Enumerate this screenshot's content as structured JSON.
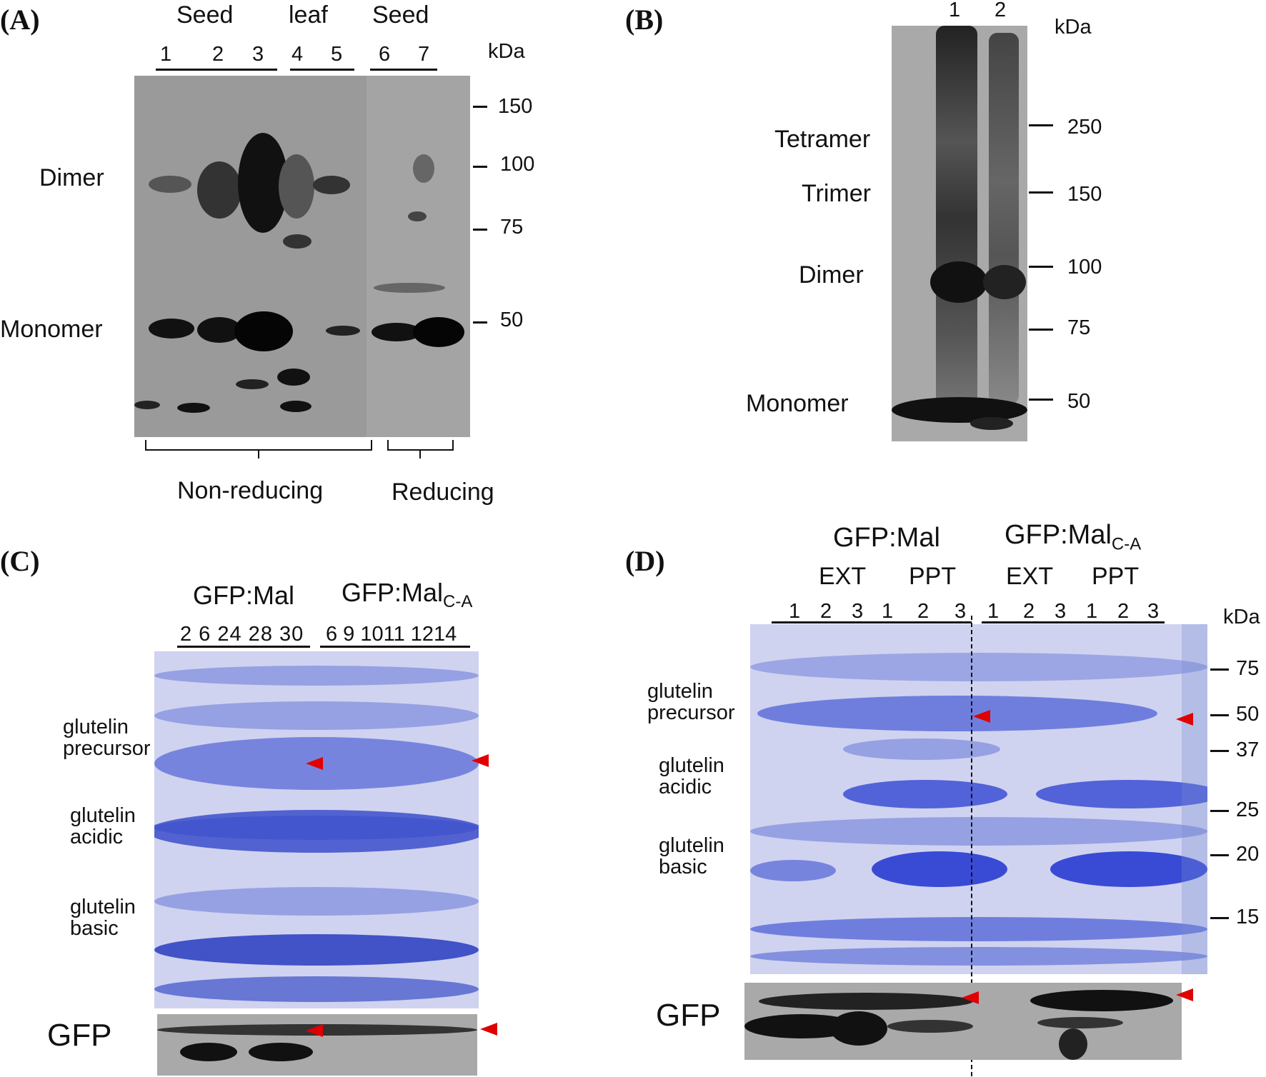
{
  "panelA": {
    "label": "(A)",
    "groups": [
      "Seed",
      "leaf",
      "Seed"
    ],
    "lanes": [
      "1",
      "2",
      "3",
      "4",
      "5",
      "6",
      "7"
    ],
    "unit": "kDa",
    "markers": [
      "150",
      "100",
      "75",
      "50"
    ],
    "bands": [
      "Dimer",
      "Monomer"
    ],
    "conditions": [
      "Non-reducing",
      "Reducing"
    ]
  },
  "panelB": {
    "label": "(B)",
    "lanes": [
      "1",
      "2"
    ],
    "unit": "kDa",
    "markers": [
      "250",
      "150",
      "100",
      "75",
      "50"
    ],
    "bands": [
      "Tetramer",
      "Trimer",
      "Dimer",
      "Monomer"
    ]
  },
  "panelC": {
    "label": "(C)",
    "group1": "GFP:Mal",
    "group2": "GFP:Mal",
    "group2_sub": "C-A",
    "lanes1": "2 6 24 28 30",
    "lanes2": "6 9 1011 1214",
    "bands": [
      "glutelin",
      "precursor",
      "glutelin",
      "acidic",
      "glutelin",
      "basic"
    ],
    "blot": "GFP"
  },
  "panelD": {
    "label": "(D)",
    "group1": "GFP:Mal",
    "group2": "GFP:Mal",
    "group2_sub": "C-A",
    "fractions": [
      "EXT",
      "PPT",
      "EXT",
      "PPT"
    ],
    "lanes": [
      "1",
      "2",
      "3",
      "1",
      "2",
      "3",
      "1",
      "2",
      "3",
      "1",
      "2",
      "3"
    ],
    "unit": "kDa",
    "markers": [
      "75",
      "50",
      "37",
      "25",
      "20",
      "15"
    ],
    "bands": [
      "glutelin",
      "precursor",
      "glutelin",
      "acidic",
      "glutelin",
      "basic"
    ],
    "blot": "GFP"
  }
}
